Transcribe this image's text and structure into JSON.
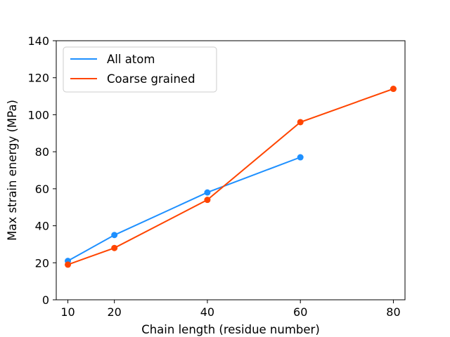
{
  "chart_data": {
    "type": "line",
    "title": "",
    "xlabel": "Chain length (residue number)",
    "ylabel": "Max strain energy (MPa)",
    "xlim": [
      7.5,
      82.5
    ],
    "ylim": [
      0,
      140
    ],
    "xticks": [
      10,
      20,
      40,
      60,
      80
    ],
    "yticks": [
      0,
      20,
      40,
      60,
      80,
      100,
      120,
      140
    ],
    "grid": false,
    "legend_position": "upper-left",
    "series": [
      {
        "name": "All atom",
        "color": "#1e90ff",
        "marker": "circle",
        "x": [
          10,
          20,
          40,
          60
        ],
        "y": [
          21,
          35,
          58,
          77
        ]
      },
      {
        "name": "Coarse grained",
        "color": "#ff4500",
        "marker": "circle",
        "x": [
          10,
          20,
          40,
          60,
          80
        ],
        "y": [
          19,
          28,
          54,
          96,
          114
        ]
      }
    ]
  }
}
